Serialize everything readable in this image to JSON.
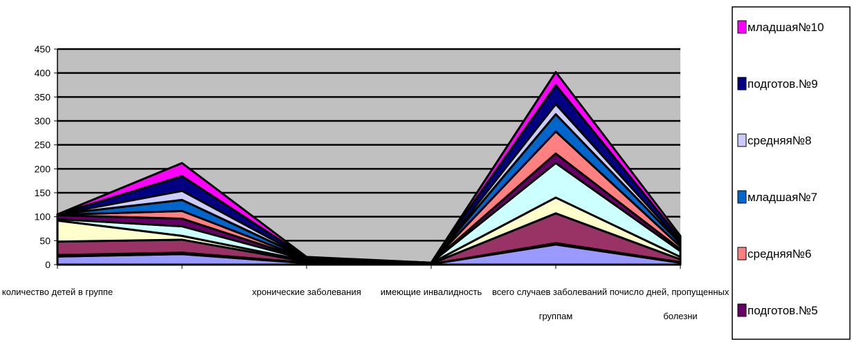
{
  "chart_data": {
    "type": "area",
    "stacked": true,
    "categories": [
      [
        "количество детей в группе"
      ],
      [
        ""
      ],
      [
        "хронические заболевания"
      ],
      [
        "имеющие инвалидность"
      ],
      [
        "всего случаев заболеваний по",
        "группам"
      ],
      [
        "число дней, пропущенных по",
        "болезни"
      ]
    ],
    "ylim": [
      0,
      450
    ],
    "yticks": [
      0,
      50,
      100,
      150,
      200,
      250,
      300,
      350,
      400,
      450
    ],
    "grid": true,
    "background_color": "#c0c0c0",
    "legend_position": "right",
    "series": [
      {
        "name": "",
        "color": "#9999ff",
        "values": [
          17,
          22,
          3,
          1,
          42,
          4
        ]
      },
      {
        "name": "",
        "color": "#993366",
        "values": [
          3,
          3,
          1,
          0,
          3,
          1
        ]
      },
      {
        "name": "",
        "color": "#993366",
        "values": [
          28,
          27,
          2,
          1,
          62,
          6
        ]
      },
      {
        "name": "",
        "color": "#ffffcc",
        "values": [
          44,
          8,
          2,
          1,
          33,
          5
        ]
      },
      {
        "name": "",
        "color": "#ccffff",
        "values": [
          3,
          20,
          2,
          1,
          72,
          12
        ]
      },
      {
        "name": "подготов.№5",
        "color": "#660066",
        "values": [
          8,
          16,
          1,
          0,
          20,
          4
        ]
      },
      {
        "name": "средняя№6",
        "color": "#ff8080",
        "values": [
          1,
          16,
          1,
          0,
          46,
          6
        ]
      },
      {
        "name": "младшая№7",
        "color": "#0066cc",
        "values": [
          1,
          23,
          1,
          0,
          36,
          6
        ]
      },
      {
        "name": "средняя№8",
        "color": "#ccccff",
        "values": [
          0,
          19,
          1,
          0,
          21,
          4
        ]
      },
      {
        "name": "подготов.№9",
        "color": "#000080",
        "values": [
          0,
          31,
          1,
          0,
          40,
          6
        ]
      },
      {
        "name": "младшая№10",
        "color": "#ff00ff",
        "values": [
          0,
          27,
          1,
          0,
          27,
          6
        ]
      }
    ],
    "legend_entries": [
      {
        "label": "младшая№10",
        "color": "#ff00ff"
      },
      {
        "label": "подготов.№9",
        "color": "#000080"
      },
      {
        "label": "средняя№8",
        "color": "#ccccff"
      },
      {
        "label": "младшая№7",
        "color": "#0066cc"
      },
      {
        "label": "средняя№6",
        "color": "#ff8080"
      },
      {
        "label": "подготов.№5",
        "color": "#660066"
      }
    ]
  }
}
